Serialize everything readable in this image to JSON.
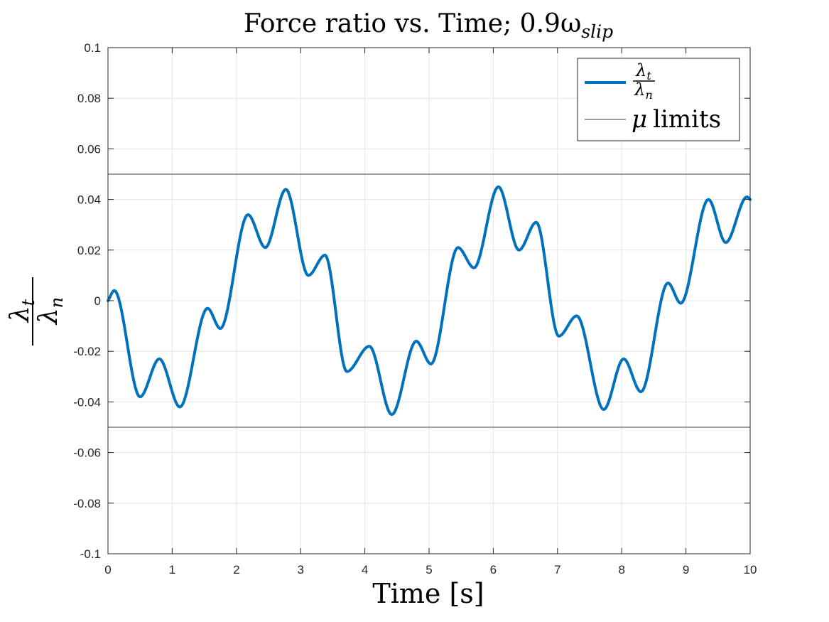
{
  "chart_data": {
    "type": "line",
    "title": {
      "main": "Force ratio vs. Time; 0.9",
      "omega": "ω",
      "subscript": "slip"
    },
    "xlabel": "Time [s]",
    "ylabel": {
      "numerator": "λ",
      "numerator_sub": "t",
      "denominator": "λ",
      "denominator_sub": "n"
    },
    "xlim": [
      0,
      10
    ],
    "ylim": [
      -0.1,
      0.1
    ],
    "x_ticks": [
      0,
      1,
      2,
      3,
      4,
      5,
      6,
      7,
      8,
      9,
      10
    ],
    "x_tick_labels": [
      "0",
      "1",
      "2",
      "3",
      "4",
      "5",
      "6",
      "7",
      "8",
      "9",
      "10"
    ],
    "y_ticks": [
      -0.1,
      -0.08,
      -0.06,
      -0.04,
      -0.02,
      0,
      0.02,
      0.04,
      0.06,
      0.08,
      0.1
    ],
    "y_tick_labels": [
      "-0.1",
      "-0.08",
      "-0.06",
      "-0.04",
      "-0.02",
      "0",
      "0.02",
      "0.04",
      "0.06",
      "0.08",
      "0.1"
    ],
    "grid": true,
    "legend_position": "top-right",
    "series": [
      {
        "legend": {
          "numerator": "λ",
          "numerator_sub": "t",
          "denominator": "λ",
          "denominator_sub": "n"
        },
        "color": "#0072BD",
        "x": [
          0,
          0.1,
          0.5,
          0.8,
          1.12,
          1.55,
          1.75,
          2.18,
          2.45,
          2.77,
          3.12,
          3.38,
          3.72,
          4.07,
          4.42,
          4.8,
          5.03,
          5.45,
          5.7,
          6.08,
          6.4,
          6.67,
          7.02,
          7.3,
          7.72,
          8.03,
          8.3,
          8.72,
          8.92,
          9.35,
          9.62,
          9.95,
          10
        ],
        "y": [
          0,
          0.004,
          -0.038,
          -0.023,
          -0.042,
          -0.003,
          -0.011,
          0.034,
          0.021,
          0.044,
          0.01,
          0.018,
          -0.028,
          -0.018,
          -0.045,
          -0.016,
          -0.025,
          0.021,
          0.013,
          0.045,
          0.02,
          0.031,
          -0.014,
          -0.006,
          -0.043,
          -0.023,
          -0.036,
          0.007,
          -0.001,
          0.04,
          0.023,
          0.041,
          0.04
        ]
      },
      {
        "legend": {
          "symbol": "μ",
          "label": "limits"
        },
        "color": "#404040",
        "limits": [
          0.05,
          -0.05
        ]
      }
    ]
  }
}
